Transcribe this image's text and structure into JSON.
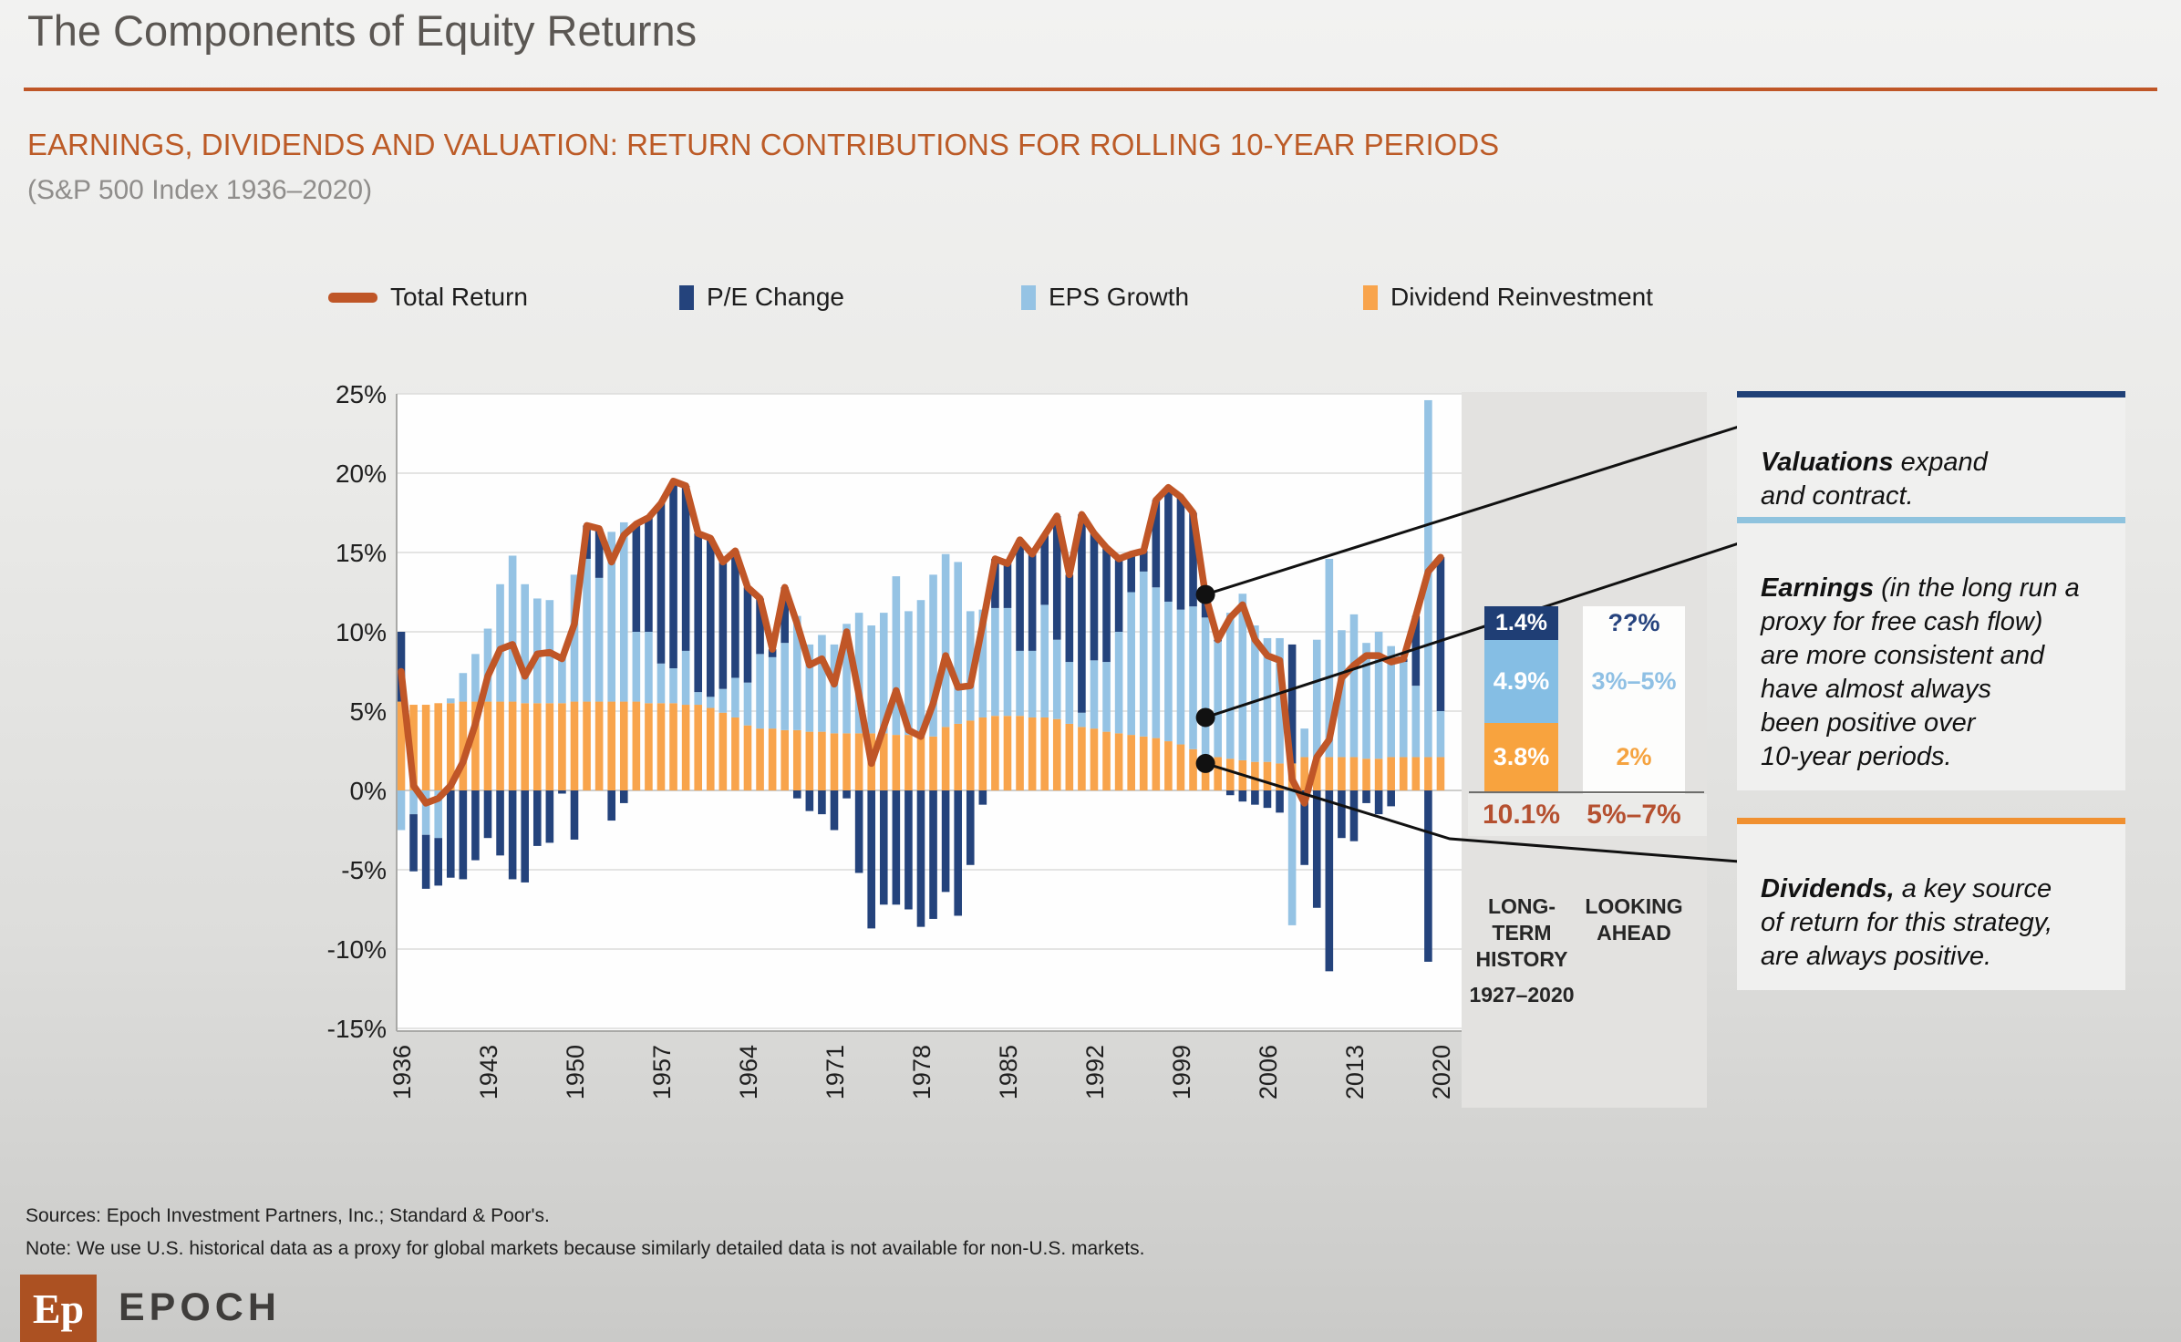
{
  "header": {
    "title": "The Components of Equity Returns",
    "subtitle": "EARNINGS, DIVIDENDS AND VALUATION: RETURN CONTRIBUTIONS FOR ROLLING 10-YEAR PERIODS",
    "subsubtitle": "(S&P 500 Index 1936–2020)",
    "accent_color": "#BF5627"
  },
  "legend": [
    {
      "label": "Total Return",
      "type": "line",
      "color": "#BF5627"
    },
    {
      "label": "P/E Change",
      "type": "box",
      "color": "#24437C"
    },
    {
      "label": "EPS Growth",
      "type": "box",
      "color": "#95C3E4"
    },
    {
      "label": "Dividend Reinvestment",
      "type": "box",
      "color": "#F8A44C"
    }
  ],
  "chart_data": {
    "type": "bar",
    "subtype": "stacked-bars-with-line",
    "start_year": 1936,
    "end_year": 2020,
    "x_tick_years": [
      1936,
      1943,
      1950,
      1957,
      1964,
      1971,
      1978,
      1985,
      1992,
      1999,
      2006,
      2013,
      2020
    ],
    "y_tick_labels": [
      "25%",
      "20%",
      "15%",
      "10%",
      "5%",
      "0%",
      "-5%",
      "-10%",
      "-15%"
    ],
    "ylim": [
      -15,
      25
    ],
    "grid": true,
    "legend_position": "top",
    "series": [
      {
        "name": "Dividend Reinvestment",
        "color": "#F8A44C",
        "values": [
          5.6,
          5.4,
          5.4,
          5.5,
          5.5,
          5.6,
          5.6,
          5.6,
          5.6,
          5.6,
          5.5,
          5.5,
          5.5,
          5.5,
          5.6,
          5.6,
          5.6,
          5.6,
          5.6,
          5.6,
          5.5,
          5.5,
          5.5,
          5.4,
          5.4,
          5.2,
          4.9,
          4.6,
          4.1,
          3.9,
          3.9,
          3.8,
          3.8,
          3.7,
          3.7,
          3.6,
          3.6,
          3.6,
          3.6,
          3.6,
          3.5,
          3.5,
          3.4,
          3.4,
          4.0,
          4.2,
          4.4,
          4.6,
          4.7,
          4.7,
          4.7,
          4.6,
          4.6,
          4.5,
          4.2,
          4.0,
          3.9,
          3.7,
          3.6,
          3.5,
          3.4,
          3.3,
          3.1,
          2.9,
          2.6,
          2.2,
          2.1,
          2.0,
          1.9,
          1.8,
          1.8,
          1.7,
          1.7,
          2.1,
          2.1,
          2.1,
          2.1,
          2.1,
          2.0,
          2.0,
          2.1,
          2.1,
          2.1,
          2.1,
          2.1
        ]
      },
      {
        "name": "EPS Growth",
        "color": "#95C3E4",
        "values": [
          -2.5,
          -1.5,
          -2.8,
          -3.0,
          0.3,
          1.8,
          3.0,
          4.6,
          7.4,
          9.2,
          7.5,
          6.6,
          6.5,
          3.0,
          8.0,
          9.0,
          7.8,
          10.7,
          11.3,
          4.4,
          4.5,
          2.5,
          2.2,
          3.4,
          0.8,
          0.7,
          1.5,
          2.5,
          2.7,
          4.7,
          4.5,
          5.5,
          7.2,
          5.5,
          6.1,
          5.6,
          6.9,
          7.6,
          6.8,
          7.6,
          10.0,
          7.8,
          8.6,
          10.2,
          10.9,
          10.2,
          6.9,
          6.8,
          6.8,
          6.8,
          4.1,
          4.2,
          7.1,
          5.0,
          3.9,
          0.9,
          4.3,
          4.4,
          6.4,
          9.0,
          10.4,
          9.5,
          8.8,
          8.5,
          9.0,
          8.7,
          7.3,
          9.2,
          10.5,
          8.6,
          7.8,
          7.9,
          -8.5,
          1.8,
          7.4,
          12.5,
          8.0,
          9.0,
          7.3,
          8.0,
          7.0,
          6.0,
          4.5,
          22.5,
          2.9
        ]
      },
      {
        "name": "P/E Change",
        "color": "#24437C",
        "values": [
          4.4,
          -3.6,
          -3.4,
          -3.0,
          -5.5,
          -5.6,
          -4.4,
          -3.0,
          -4.1,
          -5.6,
          -5.8,
          -3.5,
          -3.3,
          -0.2,
          -3.1,
          2.1,
          3.1,
          -1.9,
          -0.8,
          6.8,
          7.2,
          10.1,
          11.8,
          10.4,
          10.0,
          10.0,
          8.0,
          8.0,
          6.0,
          3.5,
          0.5,
          3.5,
          -0.5,
          -1.3,
          -1.5,
          -2.5,
          -0.5,
          -5.2,
          -8.7,
          -7.2,
          -7.2,
          -7.5,
          -8.6,
          -8.1,
          -6.4,
          -7.9,
          -4.7,
          -0.9,
          3.1,
          2.8,
          7.0,
          6.1,
          4.4,
          7.8,
          5.5,
          12.5,
          8.0,
          7.2,
          4.6,
          2.4,
          1.3,
          5.5,
          7.2,
          7.1,
          5.9,
          1.4,
          0.1,
          -0.3,
          -0.7,
          -0.9,
          -1.1,
          -1.4,
          7.5,
          -4.7,
          -7.4,
          -11.4,
          -3.0,
          -3.2,
          -0.8,
          -1.5,
          -1.0,
          0.2,
          4.4,
          -10.8,
          9.7
        ]
      }
    ],
    "line_series": {
      "name": "Total Return",
      "color": "#C05627",
      "values": [
        7.5,
        0.3,
        -0.8,
        -0.5,
        0.3,
        1.8,
        4.2,
        7.2,
        8.9,
        9.2,
        7.2,
        8.6,
        8.7,
        8.3,
        10.5,
        16.7,
        16.5,
        14.4,
        16.1,
        16.8,
        17.2,
        18.1,
        19.5,
        19.2,
        16.2,
        15.9,
        14.4,
        15.1,
        12.8,
        12.1,
        8.9,
        12.8,
        10.5,
        7.9,
        8.3,
        6.7,
        10.0,
        6.0,
        1.7,
        4.0,
        6.3,
        3.8,
        3.4,
        5.5,
        8.5,
        6.5,
        6.6,
        10.5,
        14.6,
        14.3,
        15.8,
        14.9,
        16.1,
        17.3,
        13.6,
        17.4,
        16.2,
        15.3,
        14.6,
        14.9,
        15.1,
        18.3,
        19.1,
        18.5,
        17.5,
        12.3,
        9.5,
        10.9,
        11.7,
        9.5,
        8.5,
        8.2,
        0.7,
        -0.8,
        2.1,
        3.2,
        7.1,
        7.9,
        8.5,
        8.5,
        8.1,
        8.3,
        11.0,
        13.8,
        14.7
      ]
    },
    "callout_anchor": {
      "year": 2001,
      "values": [
        12.35,
        4.6,
        1.7
      ]
    }
  },
  "summary_table": {
    "rows": [
      {
        "history": "1.4%",
        "ahead": "??%",
        "cell_color": "#1F3E75",
        "ahead_text_color": "#26437E"
      },
      {
        "history": "4.9%",
        "ahead": "3%–5%",
        "cell_color": "#85BEE4",
        "ahead_text_color": "#8FC0E4"
      },
      {
        "history": "3.8%",
        "ahead": "2%",
        "cell_color": "#F8A33E",
        "ahead_text_color": "#F5A340"
      }
    ],
    "total_history": "10.1%",
    "total_ahead": "5%–7%",
    "total_color": "#B55030",
    "col1_label": "LONG-\nTERM\nHISTORY",
    "col1_sublabel": "1927–2020",
    "col2_label": "LOOKING\nAHEAD"
  },
  "callouts": [
    {
      "lead": "Valuations",
      "rest": " expand\nand contract.",
      "border_color": "#1F4077"
    },
    {
      "lead": "Earnings",
      "rest": " (in the long run a\nproxy for free cash flow)\nare more consistent and\nhave almost always\nbeen positive over\n10-year periods.",
      "border_color": "#8FC3DE"
    },
    {
      "lead": "Dividends,",
      "rest": " a key source\nof return for this strategy,\nare always positive.",
      "border_color": "#F09030"
    }
  ],
  "footer": {
    "sources": "Sources: Epoch Investment Partners, Inc.; Standard & Poor's.",
    "note": "Note: We use U.S. historical data as a proxy for global markets because similarly detailed data is not available for non-U.S. markets."
  },
  "logo": {
    "mark": "Ep",
    "name": "EPOCH",
    "color": "#AC5122"
  }
}
